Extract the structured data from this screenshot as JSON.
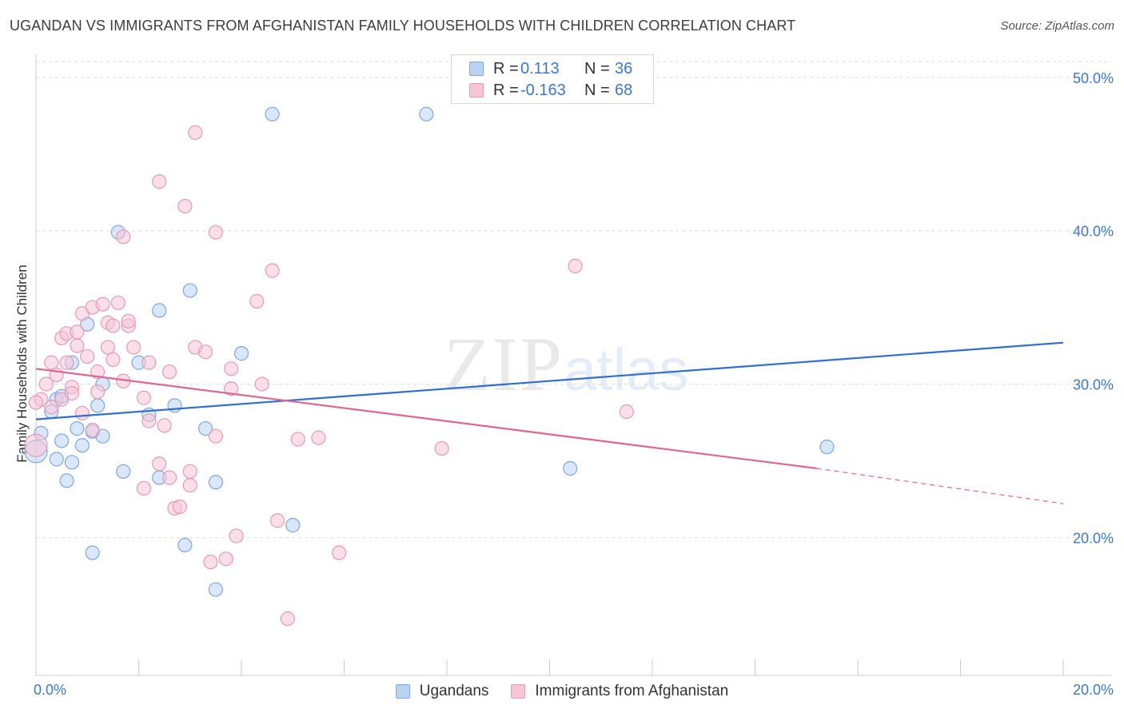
{
  "header": {
    "title": "UGANDAN VS IMMIGRANTS FROM AFGHANISTAN FAMILY HOUSEHOLDS WITH CHILDREN CORRELATION CHART",
    "source": "Source: ZipAtlas.com"
  },
  "watermark": {
    "zip": "ZIP",
    "atlas": "atlas"
  },
  "colors": {
    "blue_fill": "#b9d3f5",
    "blue_stroke": "#7fa8e0",
    "blue_line": "#2e6fd0",
    "pink_fill": "#f8c5d6",
    "pink_stroke": "#e59ab5",
    "pink_line": "#e0668f",
    "axis_text": "#3a78d4",
    "grid": "#dddddd"
  },
  "legend_top": {
    "rows": [
      {
        "r_label": "R =",
        "r_value": "0.113",
        "n_label": "N =",
        "n_value": "36"
      },
      {
        "r_label": "R =",
        "r_value": "-0.163",
        "n_label": "N =",
        "n_value": "68"
      }
    ]
  },
  "legend_bottom": {
    "items": [
      "Ugandans",
      "Immigrants from Afghanistan"
    ]
  },
  "chart_data": {
    "type": "scatter",
    "title": "UGANDAN VS IMMIGRANTS FROM AFGHANISTAN FAMILY HOUSEHOLDS WITH CHILDREN CORRELATION CHART",
    "xlabel": "",
    "ylabel": "Family Households with Children",
    "xlim": [
      0,
      20
    ],
    "ylim": [
      11,
      51.5
    ],
    "x_tick_labels": [
      "0.0%",
      "20.0%"
    ],
    "y_ticks": [
      20,
      30,
      40,
      50
    ],
    "y_tick_labels": [
      "20.0%",
      "30.0%",
      "40.0%",
      "50.0%"
    ],
    "grid": true,
    "series": [
      {
        "name": "Ugandans",
        "color": "blue",
        "R": 0.113,
        "N": 36,
        "trend": {
          "x": [
            0,
            20
          ],
          "y": [
            27.7,
            32.7
          ]
        },
        "points": [
          [
            0.0,
            25.6
          ],
          [
            0.1,
            26.8
          ],
          [
            0.3,
            28.2
          ],
          [
            0.4,
            29.0
          ],
          [
            0.4,
            25.1
          ],
          [
            0.5,
            29.2
          ],
          [
            0.5,
            26.3
          ],
          [
            0.6,
            23.7
          ],
          [
            0.7,
            31.4
          ],
          [
            0.7,
            24.9
          ],
          [
            0.8,
            27.1
          ],
          [
            0.9,
            26.0
          ],
          [
            1.0,
            33.9
          ],
          [
            1.1,
            26.9
          ],
          [
            1.1,
            19.0
          ],
          [
            1.2,
            28.6
          ],
          [
            1.3,
            30.0
          ],
          [
            1.3,
            26.6
          ],
          [
            1.6,
            39.9
          ],
          [
            1.7,
            24.3
          ],
          [
            2.0,
            31.4
          ],
          [
            2.2,
            28.0
          ],
          [
            2.4,
            34.8
          ],
          [
            2.4,
            23.9
          ],
          [
            2.7,
            28.6
          ],
          [
            2.9,
            19.5
          ],
          [
            3.0,
            36.1
          ],
          [
            3.3,
            27.1
          ],
          [
            3.5,
            16.6
          ],
          [
            3.5,
            23.6
          ],
          [
            4.0,
            32.0
          ],
          [
            4.6,
            47.6
          ],
          [
            5.0,
            20.8
          ],
          [
            7.6,
            47.6
          ],
          [
            10.4,
            24.5
          ],
          [
            15.4,
            25.9
          ]
        ]
      },
      {
        "name": "Immigrants from Afghanistan",
        "color": "pink",
        "R": -0.163,
        "N": 68,
        "trend": {
          "x": [
            0,
            15.2
          ],
          "y": [
            31.0,
            24.5
          ]
        },
        "trend_dashed": {
          "x": [
            15.2,
            20
          ],
          "y": [
            24.5,
            22.2
          ]
        },
        "points": [
          [
            0.0,
            26.0
          ],
          [
            0.1,
            29.0
          ],
          [
            0.2,
            30.0
          ],
          [
            0.3,
            28.5
          ],
          [
            0.3,
            31.4
          ],
          [
            0.4,
            30.6
          ],
          [
            0.5,
            33.0
          ],
          [
            0.5,
            29.0
          ],
          [
            0.6,
            31.4
          ],
          [
            0.6,
            33.3
          ],
          [
            0.7,
            29.8
          ],
          [
            0.7,
            29.4
          ],
          [
            0.8,
            32.5
          ],
          [
            0.8,
            33.4
          ],
          [
            0.9,
            28.1
          ],
          [
            0.9,
            34.6
          ],
          [
            1.0,
            31.8
          ],
          [
            1.1,
            27.0
          ],
          [
            1.1,
            35.0
          ],
          [
            1.2,
            30.8
          ],
          [
            1.2,
            29.5
          ],
          [
            1.3,
            35.2
          ],
          [
            1.4,
            34.0
          ],
          [
            1.4,
            32.4
          ],
          [
            1.5,
            31.6
          ],
          [
            1.5,
            33.8
          ],
          [
            1.6,
            35.3
          ],
          [
            1.7,
            39.6
          ],
          [
            1.7,
            30.2
          ],
          [
            1.8,
            33.8
          ],
          [
            1.8,
            34.1
          ],
          [
            1.9,
            32.4
          ],
          [
            2.1,
            23.2
          ],
          [
            2.1,
            29.1
          ],
          [
            2.2,
            27.6
          ],
          [
            2.2,
            31.4
          ],
          [
            2.4,
            43.2
          ],
          [
            2.4,
            24.8
          ],
          [
            2.5,
            27.3
          ],
          [
            2.6,
            30.8
          ],
          [
            2.6,
            23.9
          ],
          [
            2.7,
            21.9
          ],
          [
            2.8,
            22.0
          ],
          [
            2.9,
            41.6
          ],
          [
            3.0,
            24.3
          ],
          [
            3.0,
            23.4
          ],
          [
            3.1,
            46.4
          ],
          [
            3.1,
            32.4
          ],
          [
            3.3,
            32.1
          ],
          [
            3.4,
            18.4
          ],
          [
            3.5,
            26.6
          ],
          [
            3.5,
            39.9
          ],
          [
            3.7,
            18.6
          ],
          [
            3.8,
            31.0
          ],
          [
            3.8,
            29.7
          ],
          [
            3.9,
            20.1
          ],
          [
            4.3,
            35.4
          ],
          [
            4.4,
            30.0
          ],
          [
            4.6,
            37.4
          ],
          [
            4.7,
            21.1
          ],
          [
            4.9,
            14.7
          ],
          [
            5.1,
            26.4
          ],
          [
            5.5,
            26.5
          ],
          [
            5.9,
            19.0
          ],
          [
            7.9,
            25.8
          ],
          [
            10.5,
            37.7
          ],
          [
            11.5,
            28.2
          ],
          [
            0.0,
            28.8
          ]
        ]
      }
    ]
  }
}
